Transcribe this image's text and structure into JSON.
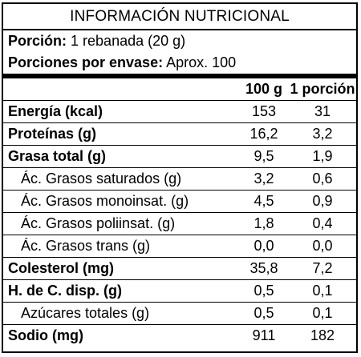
{
  "title": "INFORMACIÓN NUTRICIONAL",
  "serving": {
    "label": "Porción:",
    "value": "1 rebanada (20 g)"
  },
  "servings_per_container": {
    "label": "Porciones por envase:",
    "value": "Aprox. 100"
  },
  "columns": {
    "per100": "100 g",
    "perServing": "1 porción"
  },
  "rows": [
    {
      "name": "Energía (kcal)",
      "v100": "153",
      "vport": "31"
    },
    {
      "name": "Proteínas (g)",
      "v100": "16,2",
      "vport": "3,2"
    },
    {
      "name": "Grasa total (g)",
      "v100": "9,5",
      "vport": "1,9"
    },
    {
      "name": "Ác. Grasos saturados (g)",
      "v100": "3,2",
      "vport": "0,6"
    },
    {
      "name": "Ác. Grasos monoinsat. (g)",
      "v100": "4,5",
      "vport": "0,9"
    },
    {
      "name": "Ác. Grasos poliinsat. (g)",
      "v100": "1,8",
      "vport": "0,4"
    },
    {
      "name": "Ác. Grasos trans (g)",
      "v100": "0,0",
      "vport": "0,0"
    },
    {
      "name": "Colesterol (mg)",
      "v100": "35,8",
      "vport": "7,2"
    },
    {
      "name": "H. de C. disp. (g)",
      "v100": "0,5",
      "vport": "0,1"
    },
    {
      "name": "Azúcares totales (g)",
      "v100": "0,5",
      "vport": "0,1"
    },
    {
      "name": "Sodio (mg)",
      "v100": "911",
      "vport": "182"
    }
  ]
}
